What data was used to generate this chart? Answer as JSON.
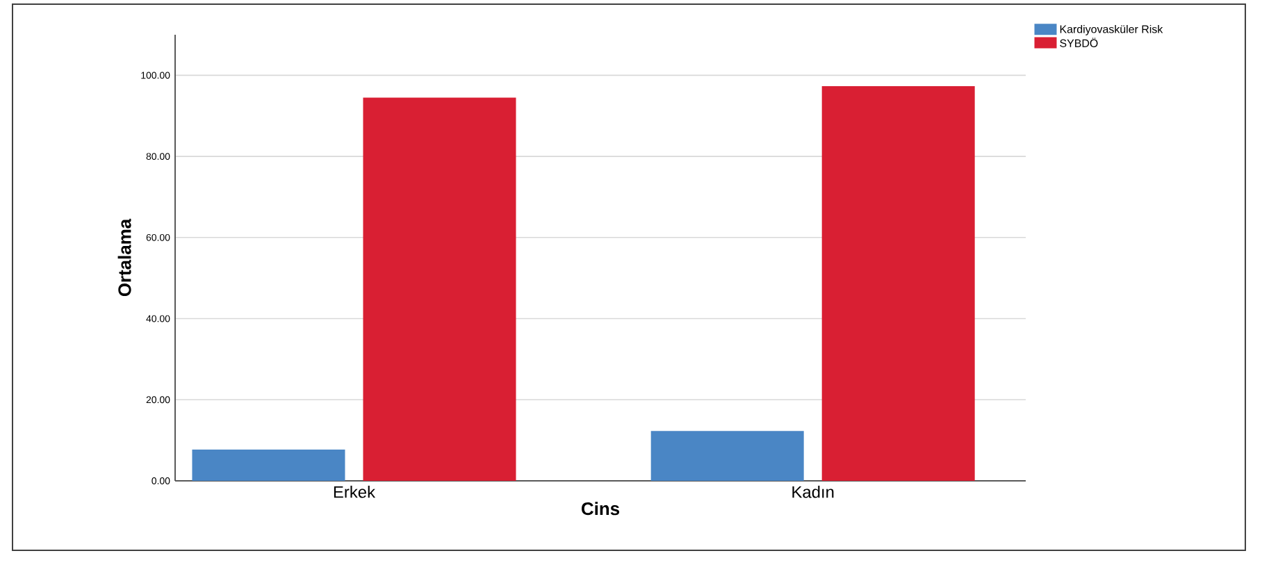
{
  "chart_data": {
    "type": "bar",
    "xlabel": "Cins",
    "ylabel": "Ortalama",
    "categories": [
      "Erkek",
      "Kadın"
    ],
    "series": [
      {
        "name": "Kardiyovasküler Risk",
        "color": "#4a86c5",
        "values": [
          7.7,
          12.3
        ]
      },
      {
        "name": "SYBDÖ",
        "color": "#d91f33",
        "values": [
          94.5,
          97.3
        ]
      }
    ],
    "ylim": [
      0,
      110
    ],
    "yticks": [
      {
        "value": 0,
        "label": "0.00"
      },
      {
        "value": 20,
        "label": "20.00"
      },
      {
        "value": 40,
        "label": "40.00"
      },
      {
        "value": 60,
        "label": "60.00"
      },
      {
        "value": 80,
        "label": "80.00"
      },
      {
        "value": 100,
        "label": "100.00"
      }
    ],
    "grid": "y",
    "legend": "top right"
  }
}
